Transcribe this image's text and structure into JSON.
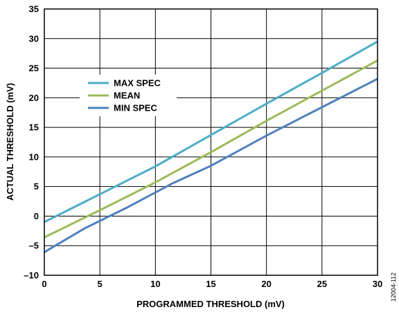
{
  "chart_data": {
    "type": "line",
    "xlabel": "PROGRAMMED THRESHOLD (mV)",
    "ylabel": "ACTUAL THRESHOLD (mV)",
    "xlim": [
      0,
      30
    ],
    "ylim": [
      -10,
      35
    ],
    "xticks": [
      0,
      5,
      10,
      15,
      20,
      25,
      30
    ],
    "yticks": [
      -10,
      -5,
      0,
      5,
      10,
      15,
      20,
      25,
      30,
      35
    ],
    "xtick_labels": [
      "0",
      "5",
      "10",
      "15",
      "20",
      "25",
      "30"
    ],
    "ytick_labels": [
      "–10",
      "–5",
      "0",
      "5",
      "10",
      "15",
      "20",
      "25",
      "30",
      "35"
    ],
    "grid": true,
    "legend_position": "upper-left",
    "series": [
      {
        "name": "MAX SPEC",
        "color": "#4bacc6",
        "x": [
          0,
          5,
          10,
          15,
          20,
          25,
          30
        ],
        "y": [
          -1.0,
          3.7,
          8.4,
          13.7,
          19.0,
          24.2,
          29.5
        ]
      },
      {
        "name": "MEAN",
        "color": "#9bbb59",
        "x": [
          0,
          5,
          10,
          15,
          20,
          25,
          30
        ],
        "y": [
          -3.6,
          1.0,
          5.7,
          10.8,
          16.1,
          21.2,
          26.3
        ]
      },
      {
        "name": "MIN SPEC",
        "color": "#4f81bd",
        "x": [
          0,
          3.7,
          7.5,
          11.5,
          15,
          20,
          25,
          30
        ],
        "y": [
          -6.1,
          -2.0,
          1.5,
          5.5,
          8.5,
          13.6,
          18.4,
          23.2
        ]
      }
    ]
  },
  "figure_id": "12004-112"
}
